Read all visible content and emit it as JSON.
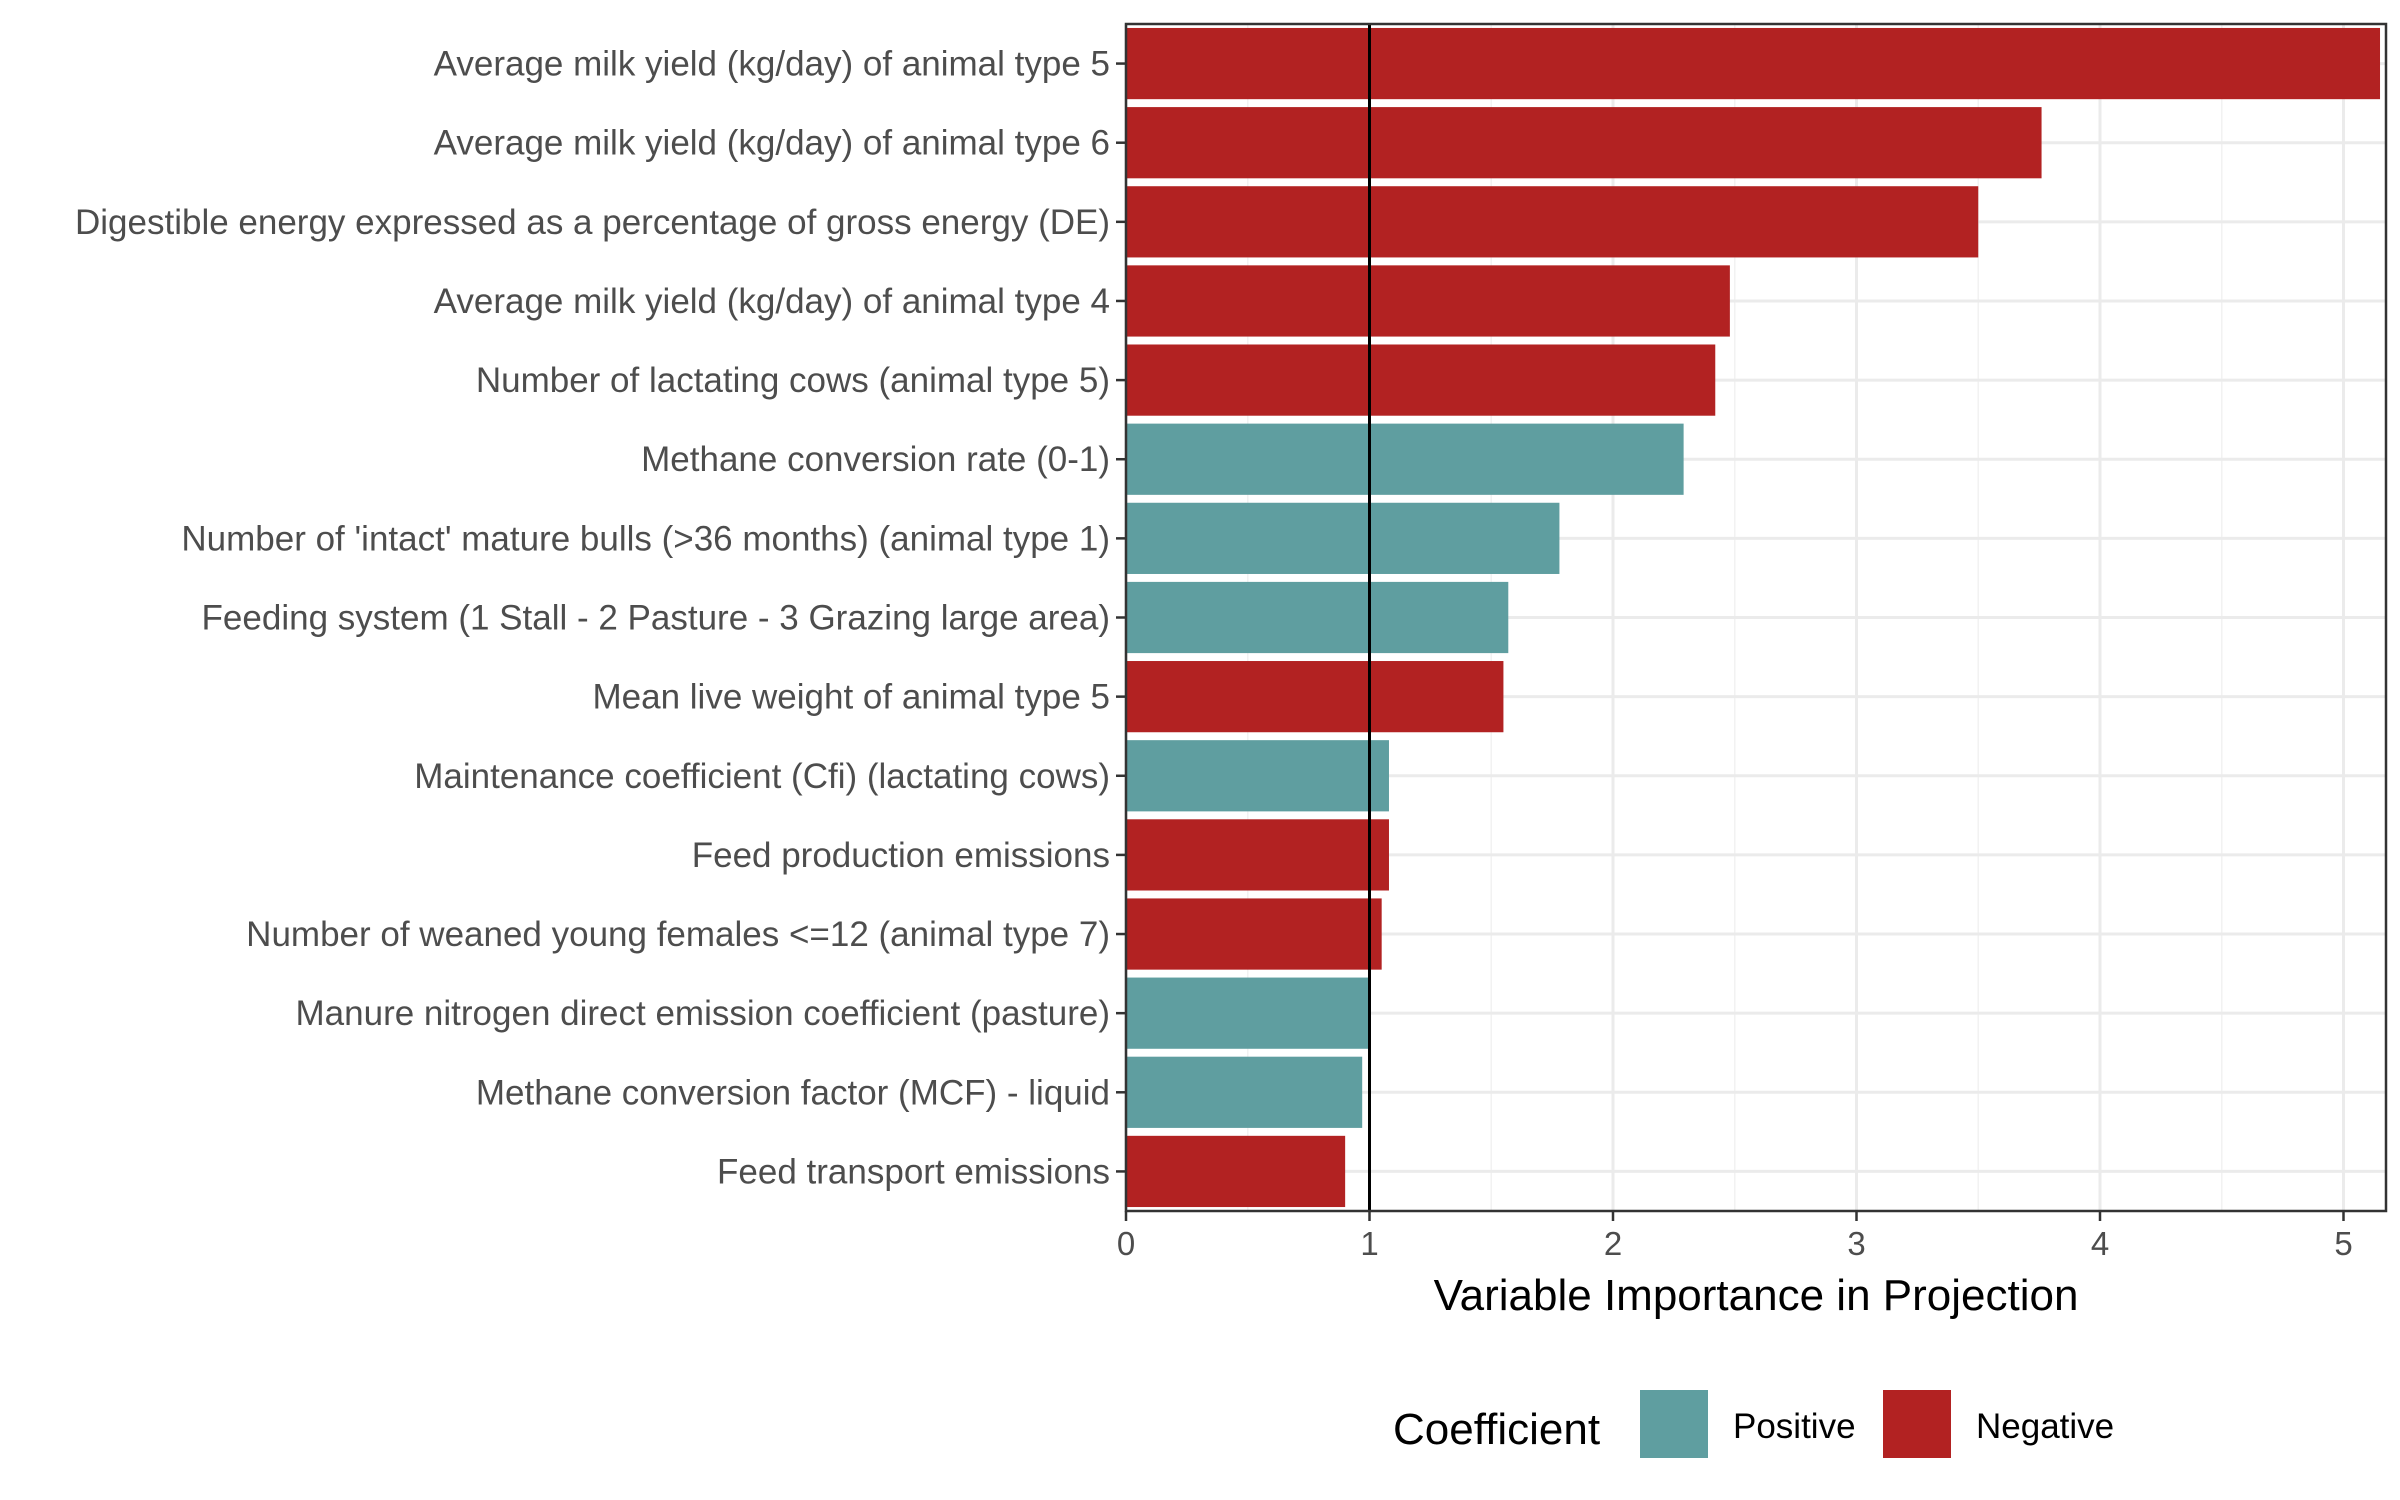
{
  "chart_data": {
    "type": "bar",
    "orientation": "horizontal",
    "title": "",
    "xlabel": "Variable Importance in Projection",
    "ylabel": "",
    "xlim": [
      0,
      5.15
    ],
    "xticks": [
      0,
      1,
      2,
      3,
      4,
      5
    ],
    "grid": true,
    "reference_line": 1,
    "categories": [
      "Average milk yield (kg/day) of animal type 5",
      "Average milk yield (kg/day) of animal type 6",
      "Digestible energy expressed as a percentage of gross energy (DE)",
      "Average milk yield (kg/day) of animal type 4",
      "Number of lactating cows (animal type 5)",
      "Methane conversion rate (0-1)",
      "Number of 'intact' mature bulls (>36 months) (animal type 1)",
      "Feeding system (1 Stall - 2 Pasture - 3 Grazing large area)",
      "Mean live weight of animal type 5",
      "Maintenance coefficient (Cfi) (lactating cows)",
      "Feed production emissions",
      "Number of weaned young females <=12 (animal type 7)",
      "Manure nitrogen direct emission coefficient (pasture)",
      "Methane conversion factor (MCF) - liquid",
      "Feed transport emissions"
    ],
    "values": [
      5.15,
      3.76,
      3.5,
      2.48,
      2.42,
      2.29,
      1.78,
      1.57,
      1.55,
      1.08,
      1.08,
      1.05,
      1.0,
      0.97,
      0.9
    ],
    "coefficient": [
      "Negative",
      "Negative",
      "Negative",
      "Negative",
      "Negative",
      "Positive",
      "Positive",
      "Positive",
      "Negative",
      "Positive",
      "Negative",
      "Negative",
      "Positive",
      "Positive",
      "Negative"
    ],
    "legend": {
      "title": "Coefficient",
      "position": "bottom",
      "entries": [
        {
          "label": "Positive",
          "color": "#5f9ea0"
        },
        {
          "label": "Negative",
          "color": "#b22222"
        }
      ]
    }
  }
}
